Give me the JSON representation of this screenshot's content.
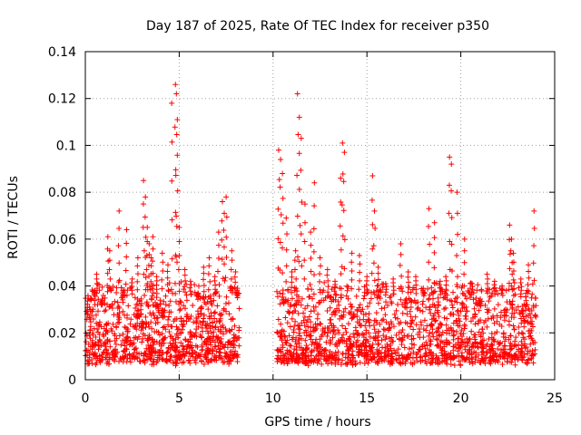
{
  "chart_data": {
    "type": "scatter",
    "title": "Day 187 of 2025, Rate Of TEC Index for receiver p350",
    "xlabel": "GPS time / hours",
    "ylabel": "ROTI / TECUs",
    "xlim": [
      0,
      25
    ],
    "ylim": [
      0,
      0.14
    ],
    "xticks": [
      0,
      5,
      10,
      15,
      20,
      25
    ],
    "xtick_labels": [
      "0",
      "5",
      "10",
      "15",
      "20",
      "25"
    ],
    "yticks": [
      0,
      0.02,
      0.04,
      0.06,
      0.08,
      0.1,
      0.12,
      0.14
    ],
    "ytick_labels": [
      "0",
      "0.02",
      "0.04",
      "0.06",
      "0.08",
      "0.1",
      "0.12",
      "0.14"
    ],
    "grid": true,
    "marker": "+",
    "color": "#ff0000",
    "data_gap_hours": [
      8.2,
      10.2
    ],
    "series": [
      {
        "name": "ROTI",
        "note": "dense band mostly 0.005-0.04 TECU/s across 0-8.2 h and 10.2-24 h",
        "x": [
          0.1,
          0.3,
          0.5,
          0.6,
          0.9,
          1.2,
          1.3,
          1.8,
          2.0,
          2.2,
          2.5,
          2.8,
          3.1,
          3.2,
          3.3,
          3.4,
          3.5,
          3.6,
          3.8,
          4.1,
          4.4,
          4.6,
          4.8,
          4.85,
          4.9,
          5.0,
          5.3,
          5.6,
          6.0,
          6.3,
          6.6,
          6.9,
          7.1,
          7.3,
          7.4,
          7.5,
          7.8,
          8.0,
          8.1,
          10.3,
          10.4,
          10.5,
          10.7,
          11.0,
          11.2,
          11.3,
          11.4,
          11.5,
          11.7,
          12.0,
          12.2,
          12.5,
          12.9,
          13.3,
          13.6,
          13.7,
          13.8,
          14.2,
          14.6,
          15.0,
          15.3,
          15.4,
          15.6,
          16.0,
          16.4,
          16.8,
          17.2,
          17.6,
          18.0,
          18.3,
          18.6,
          18.9,
          19.2,
          19.4,
          19.5,
          19.8,
          20.2,
          20.6,
          21.0,
          21.4,
          21.8,
          22.2,
          22.6,
          22.7,
          22.8,
          23.2,
          23.6,
          23.9
        ],
        "y": [
          0.028,
          0.034,
          0.038,
          0.045,
          0.032,
          0.061,
          0.055,
          0.072,
          0.038,
          0.064,
          0.043,
          0.052,
          0.085,
          0.078,
          0.065,
          0.058,
          0.052,
          0.061,
          0.044,
          0.054,
          0.049,
          0.118,
          0.126,
          0.122,
          0.111,
          0.065,
          0.047,
          0.042,
          0.037,
          0.048,
          0.052,
          0.044,
          0.063,
          0.076,
          0.071,
          0.078,
          0.055,
          0.046,
          0.039,
          0.098,
          0.094,
          0.088,
          0.069,
          0.046,
          0.055,
          0.122,
          0.112,
          0.103,
          0.075,
          0.063,
          0.084,
          0.052,
          0.047,
          0.042,
          0.086,
          0.101,
          0.097,
          0.054,
          0.053,
          0.044,
          0.087,
          0.072,
          0.048,
          0.041,
          0.043,
          0.058,
          0.046,
          0.044,
          0.039,
          0.073,
          0.067,
          0.042,
          0.044,
          0.095,
          0.092,
          0.08,
          0.06,
          0.041,
          0.032,
          0.045,
          0.042,
          0.04,
          0.066,
          0.06,
          0.054,
          0.043,
          0.049,
          0.072
        ]
      }
    ]
  }
}
